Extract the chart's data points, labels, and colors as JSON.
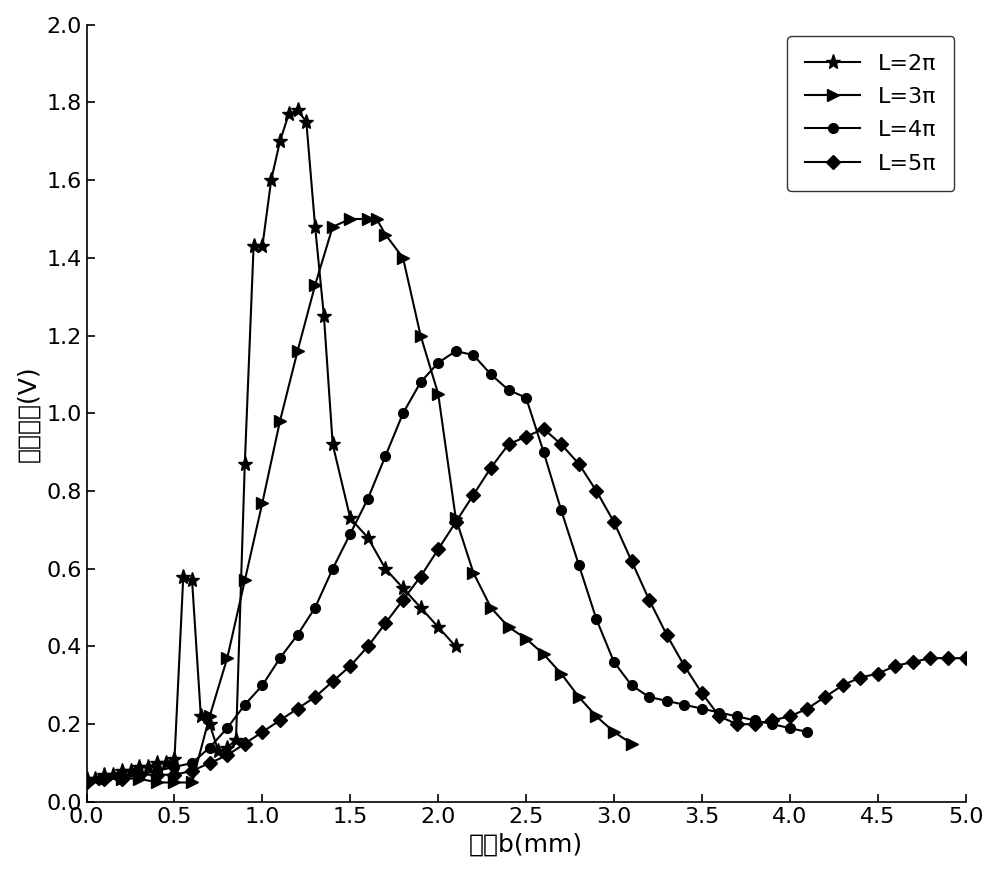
{
  "title": "",
  "xlabel": "短轴b(mm)",
  "ylabel": "输出电压(V)",
  "xlim": [
    0.0,
    5.0
  ],
  "ylim": [
    0.0,
    2.0
  ],
  "xticks": [
    0.0,
    0.5,
    1.0,
    1.5,
    2.0,
    2.5,
    3.0,
    3.5,
    4.0,
    4.5,
    5.0
  ],
  "yticks": [
    0.0,
    0.2,
    0.4,
    0.6,
    0.8,
    1.0,
    1.2,
    1.4,
    1.6,
    1.8,
    2.0
  ],
  "background_color": "#ffffff",
  "line_color": "#000000",
  "series": [
    {
      "label": "L=2π",
      "marker": "*",
      "markersize": 11,
      "x": [
        0.0,
        0.05,
        0.1,
        0.15,
        0.2,
        0.25,
        0.3,
        0.35,
        0.4,
        0.45,
        0.5,
        0.55,
        0.6,
        0.65,
        0.7,
        0.75,
        0.8,
        0.85,
        0.9,
        0.95,
        1.0,
        1.05,
        1.1,
        1.15,
        1.2,
        1.25,
        1.3,
        1.35,
        1.4,
        1.5,
        1.6,
        1.7,
        1.8,
        1.9,
        2.0,
        2.1
      ],
      "y": [
        0.06,
        0.06,
        0.07,
        0.07,
        0.08,
        0.08,
        0.09,
        0.09,
        0.1,
        0.1,
        0.11,
        0.58,
        0.57,
        0.22,
        0.2,
        0.13,
        0.14,
        0.16,
        0.87,
        1.43,
        1.43,
        1.6,
        1.7,
        1.77,
        1.78,
        1.75,
        1.48,
        1.25,
        0.92,
        0.73,
        0.68,
        0.6,
        0.55,
        0.5,
        0.45,
        0.4
      ]
    },
    {
      "label": "L=3π",
      "marker": ">",
      "markersize": 9,
      "x": [
        0.0,
        0.1,
        0.2,
        0.3,
        0.4,
        0.5,
        0.6,
        0.7,
        0.8,
        0.9,
        1.0,
        1.1,
        1.2,
        1.3,
        1.4,
        1.5,
        1.6,
        1.65,
        1.7,
        1.8,
        1.9,
        2.0,
        2.1,
        2.2,
        2.3,
        2.4,
        2.5,
        2.6,
        2.7,
        2.8,
        2.9,
        3.0,
        3.1
      ],
      "y": [
        0.05,
        0.06,
        0.06,
        0.06,
        0.05,
        0.05,
        0.05,
        0.22,
        0.37,
        0.57,
        0.77,
        0.98,
        1.16,
        1.33,
        1.48,
        1.5,
        1.5,
        1.5,
        1.46,
        1.4,
        1.2,
        1.05,
        0.73,
        0.59,
        0.5,
        0.45,
        0.42,
        0.38,
        0.33,
        0.27,
        0.22,
        0.18,
        0.15
      ]
    },
    {
      "label": "L=4π",
      "marker": "o",
      "markersize": 7,
      "x": [
        0.0,
        0.1,
        0.2,
        0.3,
        0.4,
        0.5,
        0.6,
        0.7,
        0.8,
        0.9,
        1.0,
        1.1,
        1.2,
        1.3,
        1.4,
        1.5,
        1.6,
        1.7,
        1.8,
        1.9,
        2.0,
        2.1,
        2.2,
        2.3,
        2.4,
        2.5,
        2.6,
        2.7,
        2.8,
        2.9,
        3.0,
        3.1,
        3.2,
        3.3,
        3.4,
        3.5,
        3.6,
        3.7,
        3.8,
        3.9,
        4.0,
        4.1
      ],
      "y": [
        0.05,
        0.06,
        0.07,
        0.07,
        0.08,
        0.09,
        0.1,
        0.14,
        0.19,
        0.25,
        0.3,
        0.37,
        0.43,
        0.5,
        0.6,
        0.69,
        0.78,
        0.89,
        1.0,
        1.08,
        1.13,
        1.16,
        1.15,
        1.1,
        1.06,
        1.04,
        0.9,
        0.75,
        0.61,
        0.47,
        0.36,
        0.3,
        0.27,
        0.26,
        0.25,
        0.24,
        0.23,
        0.22,
        0.21,
        0.2,
        0.19,
        0.18
      ]
    },
    {
      "label": "L=5π",
      "marker": "D",
      "markersize": 7,
      "x": [
        0.0,
        0.1,
        0.2,
        0.3,
        0.4,
        0.5,
        0.6,
        0.7,
        0.8,
        0.9,
        1.0,
        1.1,
        1.2,
        1.3,
        1.4,
        1.5,
        1.6,
        1.7,
        1.8,
        1.9,
        2.0,
        2.1,
        2.2,
        2.3,
        2.4,
        2.5,
        2.6,
        2.7,
        2.8,
        2.9,
        3.0,
        3.1,
        3.2,
        3.3,
        3.4,
        3.5,
        3.6,
        3.7,
        3.8,
        3.9,
        4.0,
        4.1,
        4.2,
        4.3,
        4.4,
        4.5,
        4.6,
        4.7,
        4.8,
        4.9,
        5.0
      ],
      "y": [
        0.05,
        0.06,
        0.06,
        0.07,
        0.07,
        0.07,
        0.08,
        0.1,
        0.12,
        0.15,
        0.18,
        0.21,
        0.24,
        0.27,
        0.31,
        0.35,
        0.4,
        0.46,
        0.52,
        0.58,
        0.65,
        0.72,
        0.79,
        0.86,
        0.92,
        0.94,
        0.96,
        0.92,
        0.87,
        0.8,
        0.72,
        0.62,
        0.52,
        0.43,
        0.35,
        0.28,
        0.22,
        0.2,
        0.2,
        0.21,
        0.22,
        0.24,
        0.27,
        0.3,
        0.32,
        0.33,
        0.35,
        0.36,
        0.37,
        0.37,
        0.37
      ]
    }
  ],
  "legend_loc": "upper right",
  "fontsize_tick": 16,
  "fontsize_label": 18,
  "fontsize_legend": 16,
  "linewidth": 1.5,
  "markersizes": [
    11,
    9,
    7,
    7
  ]
}
